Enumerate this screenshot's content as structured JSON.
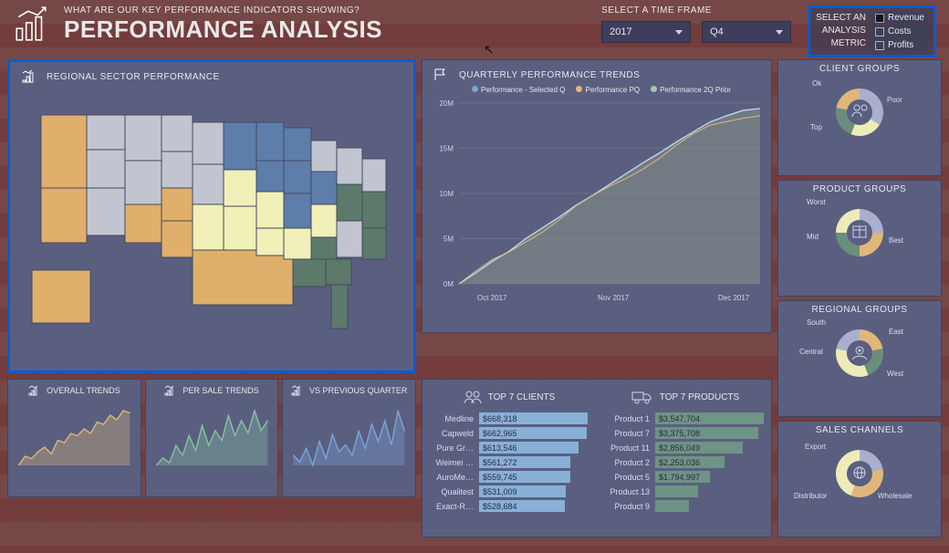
{
  "header": {
    "subtitle": "WHAT ARE OUR KEY PERFORMANCE INDICATORS SHOWING?",
    "title": "PERFORMANCE ANALYSIS"
  },
  "timeframe": {
    "label": "SELECT A TIME FRAME",
    "year": "2017",
    "quarter": "Q4"
  },
  "metric": {
    "label1": "SELECT AN",
    "label2": "ANALYSIS",
    "label3": "METRIC",
    "items": [
      {
        "label": "Revenue",
        "color": "#141418",
        "selected": true
      },
      {
        "label": "Costs",
        "color": "transparent",
        "selected": false
      },
      {
        "label": "Profits",
        "color": "transparent",
        "selected": false
      }
    ]
  },
  "panels": {
    "map_title": "REGIONAL SECTOR PERFORMANCE",
    "chart_title": "QUARTERLY PERFORMANCE TRENDS",
    "top_clients_title": "TOP 7 CLIENTS",
    "top_products_title": "TOP 7 PRODUCTS"
  },
  "map": {
    "colors": {
      "bg": "#5a5f80",
      "orange": "#e0af6b",
      "blue": "#5d7dab",
      "yellow": "#f1f0b8",
      "green": "#5c7a6a",
      "grey": "#c2c5d0",
      "outline": "#44485f"
    }
  },
  "line_chart": {
    "ylim": [
      0,
      20
    ],
    "ytick_labels": [
      "0M",
      "5M",
      "10M",
      "15M",
      "20M"
    ],
    "xlabels": [
      "Oct 2017",
      "Nov 2017",
      "Dec 2017"
    ],
    "series": [
      {
        "name": "Performance - Selected Q",
        "color": "#7ea4cf"
      },
      {
        "name": "Performance PQ",
        "color": "#e4b87a"
      },
      {
        "name": "Performance 2Q Prior",
        "color": "#9bcab0"
      }
    ],
    "area_top_color": "#b7d1e4",
    "area_fill": "#869285",
    "line2_color": "#e4b87a",
    "grid_color": "#7b80a0",
    "bg": "#5a5f80",
    "points": [
      0,
      1.2,
      2.5,
      3.6,
      5,
      6.2,
      7.4,
      8.7,
      9.8,
      11,
      12.2,
      13.4,
      14.5,
      15.7,
      16.8,
      17.9,
      18.6,
      19.2,
      19.4
    ]
  },
  "minis": [
    {
      "title": "OVERALL TRENDS",
      "color": "#ddb877",
      "data": [
        8,
        12,
        11,
        14,
        16,
        13,
        19,
        18,
        22,
        21,
        24,
        22,
        27,
        26,
        30,
        28,
        32,
        31
      ]
    },
    {
      "title": "PER SALE TRENDS",
      "color": "#88c2a3",
      "data": [
        6,
        9,
        7,
        14,
        10,
        18,
        12,
        22,
        14,
        20,
        16,
        26,
        18,
        24,
        19,
        28,
        20,
        24
      ]
    },
    {
      "title": "VS PREVIOUS QUARTER",
      "color": "#7aa7d6",
      "data": [
        20,
        18,
        22,
        17,
        24,
        19,
        26,
        21,
        23,
        20,
        27,
        22,
        29,
        24,
        30,
        23,
        33,
        27
      ]
    }
  ],
  "top_clients": {
    "max": 668318,
    "color": "#88b0d6",
    "rows": [
      {
        "label": "Medline",
        "value": 668318,
        "text": "$668,318"
      },
      {
        "label": "Capweld",
        "value": 662965,
        "text": "$662,965"
      },
      {
        "label": "Pure Gr…",
        "value": 613546,
        "text": "$613,546"
      },
      {
        "label": "Weimei …",
        "value": 561272,
        "text": "$561,272"
      },
      {
        "label": "AuroMe…",
        "value": 559745,
        "text": "$559,745"
      },
      {
        "label": "Qualitest",
        "value": 531009,
        "text": "$531,009"
      },
      {
        "label": "Exact-R…",
        "value": 528684,
        "text": "$528,684"
      }
    ]
  },
  "top_products": {
    "max": 3547704,
    "color": "#6d9484",
    "rows": [
      {
        "label": "Product 1",
        "value": 3547704,
        "text": "$3,547,704"
      },
      {
        "label": "Product 7",
        "value": 3375708,
        "text": "$3,375,708"
      },
      {
        "label": "Product 11",
        "value": 2856049,
        "text": "$2,856,049"
      },
      {
        "label": "Product 2",
        "value": 2253036,
        "text": "$2,253,036"
      },
      {
        "label": "Product 5",
        "value": 1794997,
        "text": "$1,794,997"
      },
      {
        "label": "Product 13",
        "value": 1400000,
        "text": ""
      },
      {
        "label": "Product 9",
        "value": 1100000,
        "text": ""
      }
    ]
  },
  "donuts": [
    {
      "title": "CLIENT GROUPS",
      "icon": "people",
      "labels": [
        "Ok",
        "Poor",
        "Top"
      ],
      "segments": [
        {
          "v": 34,
          "c": "#a9b0ce"
        },
        {
          "v": 22,
          "c": "#edebb8"
        },
        {
          "v": 22,
          "c": "#6a8e7c"
        },
        {
          "v": 22,
          "c": "#e0b779"
        }
      ],
      "pos": [
        [
          "-4px",
          "4px"
        ],
        [
          "78px",
          "22px"
        ],
        [
          "-6px",
          "52px"
        ]
      ]
    },
    {
      "title": "PRODUCT GROUPS",
      "icon": "box",
      "labels": [
        "Worst",
        "Mid",
        "Best"
      ],
      "segments": [
        {
          "v": 25,
          "c": "#a9b0ce"
        },
        {
          "v": 25,
          "c": "#e0b779"
        },
        {
          "v": 25,
          "c": "#6a8e7c"
        },
        {
          "v": 25,
          "c": "#edebb8"
        }
      ],
      "pos": [
        [
          "-10px",
          "2px"
        ],
        [
          "-10px",
          "40px"
        ],
        [
          "80px",
          "44px"
        ]
      ]
    },
    {
      "title": "REGIONAL GROUPS",
      "icon": "pin",
      "labels": [
        "South",
        "East",
        "Central",
        "West"
      ],
      "segments": [
        {
          "v": 22,
          "c": "#e0b779"
        },
        {
          "v": 22,
          "c": "#6a8e7c"
        },
        {
          "v": 34,
          "c": "#edebb8"
        },
        {
          "v": 22,
          "c": "#a9b0ce"
        }
      ],
      "pos": [
        [
          "-10px",
          "2px"
        ],
        [
          "80px",
          "12px"
        ],
        [
          "-18px",
          "34px"
        ],
        [
          "78px",
          "58px"
        ]
      ]
    },
    {
      "title": "SALES CHANNELS",
      "icon": "globe",
      "labels": [
        "Export",
        "Distributor",
        "Wholesale"
      ],
      "segments": [
        {
          "v": 22,
          "c": "#a9b0ce"
        },
        {
          "v": 34,
          "c": "#e0b779"
        },
        {
          "v": 44,
          "c": "#edebb8"
        }
      ],
      "pos": [
        [
          "-12px",
          "6px"
        ],
        [
          "-24px",
          "60px"
        ],
        [
          "68px",
          "60px"
        ]
      ]
    }
  ],
  "colors": {
    "panel_bg": "#5a5f80"
  }
}
